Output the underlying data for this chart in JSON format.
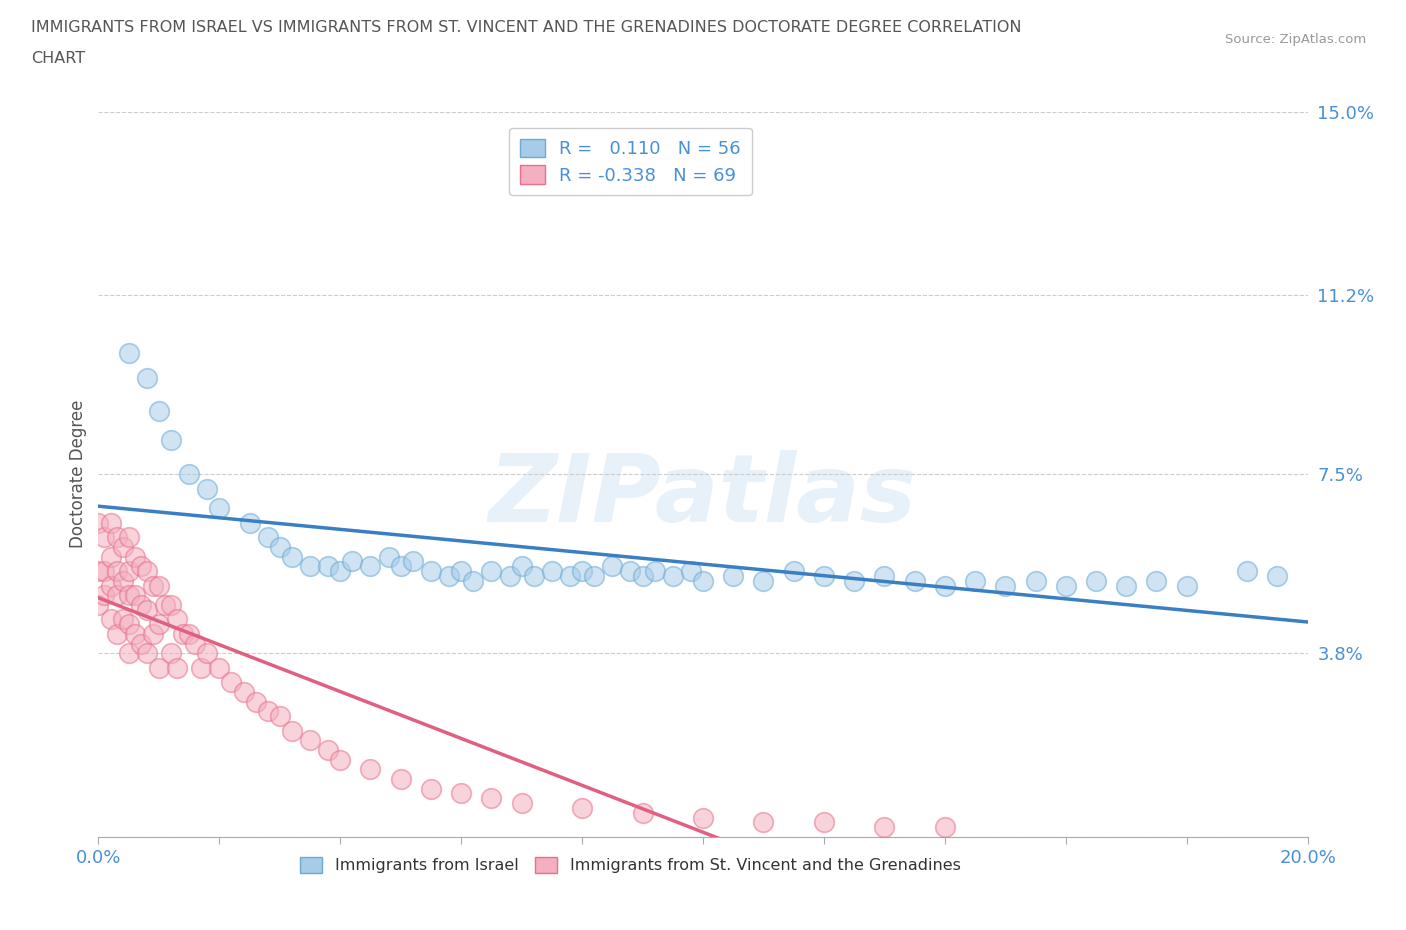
{
  "title_line1": "IMMIGRANTS FROM ISRAEL VS IMMIGRANTS FROM ST. VINCENT AND THE GRENADINES DOCTORATE DEGREE CORRELATION",
  "title_line2": "CHART",
  "source": "Source: ZipAtlas.com",
  "ylabel": "Doctorate Degree",
  "xlim": [
    0.0,
    0.2
  ],
  "ylim": [
    0.0,
    0.15
  ],
  "xticks": [
    0.0,
    0.02,
    0.04,
    0.06,
    0.08,
    0.1,
    0.12,
    0.14,
    0.16,
    0.18,
    0.2
  ],
  "yticks": [
    0.0,
    0.038,
    0.075,
    0.112,
    0.15
  ],
  "ytick_labels": [
    "",
    "3.8%",
    "7.5%",
    "11.2%",
    "15.0%"
  ],
  "xtick_labels": [
    "0.0%",
    "",
    "",
    "",
    "",
    "",
    "",
    "",
    "",
    "",
    "20.0%"
  ],
  "israel_color": "#a8cce8",
  "vincent_color": "#f4b0c0",
  "israel_edge_color": "#6aaad4",
  "vincent_edge_color": "#e8708a",
  "israel_line_color": "#3a7fc4",
  "vincent_line_color": "#e06080",
  "israel_R": 0.11,
  "israel_N": 56,
  "vincent_R": -0.338,
  "vincent_N": 69,
  "israel_x": [
    0.005,
    0.008,
    0.01,
    0.012,
    0.015,
    0.018,
    0.02,
    0.025,
    0.028,
    0.03,
    0.032,
    0.035,
    0.038,
    0.04,
    0.042,
    0.045,
    0.048,
    0.05,
    0.052,
    0.055,
    0.058,
    0.06,
    0.062,
    0.065,
    0.068,
    0.07,
    0.072,
    0.075,
    0.078,
    0.08,
    0.082,
    0.085,
    0.088,
    0.09,
    0.092,
    0.095,
    0.098,
    0.1,
    0.105,
    0.11,
    0.115,
    0.12,
    0.125,
    0.13,
    0.135,
    0.14,
    0.145,
    0.15,
    0.155,
    0.16,
    0.165,
    0.17,
    0.175,
    0.18,
    0.19,
    0.195
  ],
  "israel_y": [
    0.1,
    0.095,
    0.088,
    0.082,
    0.075,
    0.072,
    0.068,
    0.065,
    0.062,
    0.06,
    0.058,
    0.056,
    0.056,
    0.055,
    0.057,
    0.056,
    0.058,
    0.056,
    0.057,
    0.055,
    0.054,
    0.055,
    0.053,
    0.055,
    0.054,
    0.056,
    0.054,
    0.055,
    0.054,
    0.055,
    0.054,
    0.056,
    0.055,
    0.054,
    0.055,
    0.054,
    0.055,
    0.053,
    0.054,
    0.053,
    0.055,
    0.054,
    0.053,
    0.054,
    0.053,
    0.052,
    0.053,
    0.052,
    0.053,
    0.052,
    0.053,
    0.052,
    0.053,
    0.052,
    0.055,
    0.054
  ],
  "vincent_x": [
    0.0,
    0.0,
    0.0,
    0.001,
    0.001,
    0.001,
    0.002,
    0.002,
    0.002,
    0.002,
    0.003,
    0.003,
    0.003,
    0.003,
    0.004,
    0.004,
    0.004,
    0.005,
    0.005,
    0.005,
    0.005,
    0.005,
    0.006,
    0.006,
    0.006,
    0.007,
    0.007,
    0.007,
    0.008,
    0.008,
    0.008,
    0.009,
    0.009,
    0.01,
    0.01,
    0.01,
    0.011,
    0.012,
    0.012,
    0.013,
    0.013,
    0.014,
    0.015,
    0.016,
    0.017,
    0.018,
    0.02,
    0.022,
    0.024,
    0.026,
    0.028,
    0.03,
    0.032,
    0.035,
    0.038,
    0.04,
    0.045,
    0.05,
    0.055,
    0.06,
    0.065,
    0.07,
    0.08,
    0.09,
    0.1,
    0.11,
    0.12,
    0.13,
    0.14
  ],
  "vincent_y": [
    0.065,
    0.055,
    0.048,
    0.062,
    0.055,
    0.05,
    0.065,
    0.058,
    0.052,
    0.045,
    0.062,
    0.055,
    0.05,
    0.042,
    0.06,
    0.053,
    0.045,
    0.062,
    0.055,
    0.05,
    0.044,
    0.038,
    0.058,
    0.05,
    0.042,
    0.056,
    0.048,
    0.04,
    0.055,
    0.047,
    0.038,
    0.052,
    0.042,
    0.052,
    0.044,
    0.035,
    0.048,
    0.048,
    0.038,
    0.045,
    0.035,
    0.042,
    0.042,
    0.04,
    0.035,
    0.038,
    0.035,
    0.032,
    0.03,
    0.028,
    0.026,
    0.025,
    0.022,
    0.02,
    0.018,
    0.016,
    0.014,
    0.012,
    0.01,
    0.009,
    0.008,
    0.007,
    0.006,
    0.005,
    0.004,
    0.003,
    0.003,
    0.002,
    0.002
  ],
  "watermark_text": "ZIPatlas",
  "background_color": "#ffffff",
  "grid_color": "#cccccc",
  "axis_color": "#aaaaaa",
  "tick_color": "#4a90d9",
  "title_color": "#555555"
}
